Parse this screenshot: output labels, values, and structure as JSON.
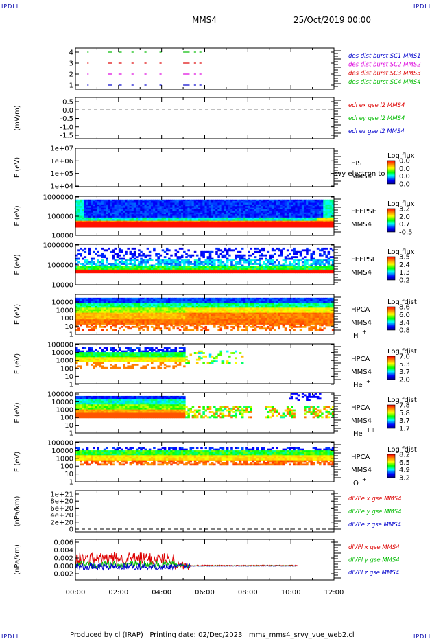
{
  "corner_tag": "IPDLI",
  "header": {
    "spacecraft": "MMS4",
    "date": "25/Oct/2019 00:00"
  },
  "footer": {
    "text": "Produced by cl (IRAP)   Printing date: 02/Dec/2023   mms_mms4_srvy_vue_web2.cl"
  },
  "time_axis": {
    "ticks": [
      "00:00",
      "02:00",
      "04:00",
      "06:00",
      "08:00",
      "10:00",
      "12:00"
    ]
  },
  "colors": {
    "red": "#dd0000",
    "green": "#00bb00",
    "blue": "#0000cc",
    "magenta": "#dd00dd"
  },
  "chart_data": [
    {
      "type": "scatter",
      "name": "burst",
      "yticks": [
        "4",
        "3",
        "2",
        "1"
      ],
      "legend": [
        {
          "label": "des dist burst SC1 MMS1",
          "color": "#0000cc"
        },
        {
          "label": "des dist burst SC2 MMS2",
          "color": "#dd00dd"
        },
        {
          "label": "des dist burst SC3 MMS3",
          "color": "#dd0000"
        },
        {
          "label": "des dist burst SC4 MMS4",
          "color": "#00bb00"
        }
      ],
      "segments_hours": [
        [
          0.55,
          0.6
        ],
        [
          1.5,
          1.7
        ],
        [
          2.0,
          2.15
        ],
        [
          2.6,
          2.7
        ],
        [
          3.2,
          3.3
        ],
        [
          3.9,
          4.0
        ],
        [
          5.0,
          5.3
        ],
        [
          5.5,
          5.6
        ],
        [
          5.75,
          5.85
        ]
      ]
    },
    {
      "type": "line",
      "name": "edi",
      "ylabel": "(mV/m)",
      "yticks": [
        "0.5",
        "0.0",
        "-0.5",
        "-1.0",
        "-1.5"
      ],
      "ylim": [
        -1.5,
        0.5
      ],
      "legend": [
        {
          "label": "edi ex gse l2 MMS4",
          "color": "#dd0000"
        },
        {
          "label": "edi ey gse l2 MMS4",
          "color": "#00bb00"
        },
        {
          "label": "edi ez gse l2 MMS4",
          "color": "#0000cc"
        }
      ]
    },
    {
      "type": "heatmap",
      "name": "eis",
      "ylabel": "E (eV)",
      "yticks": [
        "1e+07",
        "1e+06",
        "1e+05",
        "1e+04"
      ],
      "instrument": [
        "EIS",
        "MMS4"
      ],
      "overlay": "l|svy electron to",
      "colorbar": {
        "title": "Log flux",
        "ticks": [
          "0.0",
          "0.0",
          "0.0",
          "0.0"
        ]
      }
    },
    {
      "type": "heatmap",
      "name": "feepse",
      "ylabel": "E (eV)",
      "yticks": [
        "1000000",
        "100000",
        "10000"
      ],
      "instrument": [
        "FEEPSE",
        "MMS4"
      ],
      "colorbar": {
        "title": "Log flux",
        "ticks": [
          "3.2",
          "2.0",
          "0.7",
          "-0.5"
        ]
      }
    },
    {
      "type": "heatmap",
      "name": "feepsi",
      "ylabel": "E (eV)",
      "yticks": [
        "1000000",
        "100000",
        "10000"
      ],
      "instrument": [
        "FEEPSI",
        "MMS4"
      ],
      "colorbar": {
        "title": "Log flux",
        "ticks": [
          "3.5",
          "2.4",
          "1.3",
          "0.2"
        ]
      }
    },
    {
      "type": "heatmap",
      "name": "hpca-h",
      "ylabel": "E (eV)",
      "yticks": [
        "10000",
        "1000",
        "100",
        "10",
        "1"
      ],
      "instrument": [
        "HPCA",
        "MMS4",
        "H",
        "+"
      ],
      "colorbar": {
        "title": "Log fdist",
        "ticks": [
          "8.6",
          "6.0",
          "3.4",
          "0.8"
        ]
      }
    },
    {
      "type": "heatmap",
      "name": "hpca-he1",
      "ylabel": "E (eV)",
      "yticks": [
        "100000",
        "10000",
        "1000",
        "100",
        "10",
        "1"
      ],
      "instrument": [
        "HPCA",
        "MMS4",
        "He",
        "+"
      ],
      "colorbar": {
        "title": "Log fdist",
        "ticks": [
          "7.0",
          "5.3",
          "3.7",
          "2.0"
        ]
      }
    },
    {
      "type": "heatmap",
      "name": "hpca-he2",
      "ylabel": "E (eV)",
      "yticks": [
        "100000",
        "10000",
        "1000",
        "100",
        "10",
        "1"
      ],
      "instrument": [
        "HPCA",
        "MMS4",
        "He",
        "++"
      ],
      "colorbar": {
        "title": "Log fdist",
        "ticks": [
          "7.8",
          "5.8",
          "3.7",
          "1.7"
        ]
      }
    },
    {
      "type": "heatmap",
      "name": "hpca-o",
      "ylabel": "E (eV)",
      "yticks": [
        "100000",
        "10000",
        "1000",
        "100",
        "10",
        "1"
      ],
      "instrument": [
        "HPCA",
        "MMS4",
        "O",
        "+"
      ],
      "colorbar": {
        "title": "Log fdist",
        "ticks": [
          "8.2",
          "6.5",
          "4.9",
          "3.2"
        ]
      }
    },
    {
      "type": "line",
      "name": "dpe",
      "ylabel": "(nPa/km)",
      "yticks": [
        "1e+21",
        "8e+20",
        "6e+20",
        "4e+20",
        "2e+20",
        "0"
      ],
      "ylim": [
        0,
        1.1e+21
      ],
      "legend": [
        {
          "label": "dlVPe x gse MMS4",
          "color": "#dd0000"
        },
        {
          "label": "dlVPe y gse MMS4",
          "color": "#00bb00"
        },
        {
          "label": "dlVPe z gse MMS4",
          "color": "#0000cc"
        }
      ]
    },
    {
      "type": "line",
      "name": "dpi",
      "ylabel": "(nPa/km)",
      "yticks": [
        "0.006",
        "0.004",
        "0.002",
        "0.000",
        "-0.002"
      ],
      "ylim": [
        -0.003,
        0.007
      ],
      "legend": [
        {
          "label": "dlVPl x gse MMS4",
          "color": "#dd0000"
        },
        {
          "label": "dlVPl y gse MMS4",
          "color": "#00bb00"
        },
        {
          "label": "dlVPl z gse MMS4",
          "color": "#0000cc"
        }
      ]
    }
  ]
}
